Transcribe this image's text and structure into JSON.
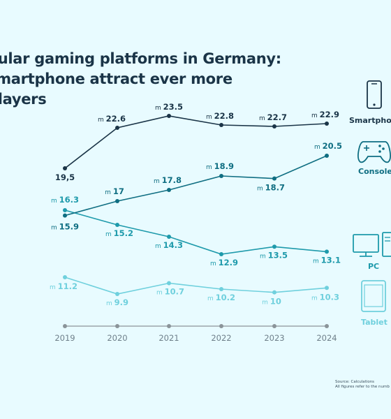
{
  "title_lines": [
    "pular gaming platforms in Germany:",
    "smartphone attract ever more",
    "players"
  ],
  "source_lines": [
    "Source: Calculations",
    "All figures refer to the numb"
  ],
  "colors": {
    "background": "#e8fbff",
    "smartphone": "#1a3447",
    "console": "#0f6e82",
    "pc": "#1e9aab",
    "tablet": "#6fd0dd",
    "baseline": "#8a9499"
  },
  "legend": [
    {
      "series": "Smartphone",
      "label": "Smartphone",
      "icon": "smartphone-icon"
    },
    {
      "series": "Console",
      "label": "Console",
      "icon": "gamepad-icon"
    },
    {
      "series": "PC",
      "label": "PC",
      "icon": "monitor-icon"
    },
    {
      "series": "Tablet",
      "label": "Tablet",
      "icon": "tablet-icon"
    }
  ],
  "chart_data": {
    "type": "line",
    "unit_prefix": "m",
    "x": [
      "2019",
      "2020",
      "2021",
      "2022",
      "2023",
      "2024"
    ],
    "series": [
      {
        "name": "Smartphone",
        "values": [
          19.5,
          22.6,
          23.5,
          22.8,
          22.7,
          22.9
        ],
        "labels": [
          "19,5",
          "22.6",
          "23.5",
          "22.8",
          "22.7",
          "22.9"
        ]
      },
      {
        "name": "Console",
        "values": [
          15.9,
          17,
          17.8,
          18.9,
          18.7,
          20.5
        ],
        "labels": [
          "15.9",
          "17",
          "17.8",
          "18.9",
          "18.7",
          "20.5"
        ]
      },
      {
        "name": "PC",
        "values": [
          16.3,
          15.2,
          14.3,
          12.9,
          13.5,
          13.1
        ],
        "labels": [
          "16.3",
          "15.2",
          "14.3",
          "12.9",
          "13.5",
          "13.1"
        ]
      },
      {
        "name": "Tablet",
        "values": [
          11.2,
          9.9,
          10.7,
          10.2,
          10,
          10.3
        ],
        "labels": [
          "11.2",
          "9.9",
          "10.7",
          "10.2",
          "10",
          "10.3"
        ]
      }
    ],
    "legend_position": "right",
    "grid": false
  }
}
